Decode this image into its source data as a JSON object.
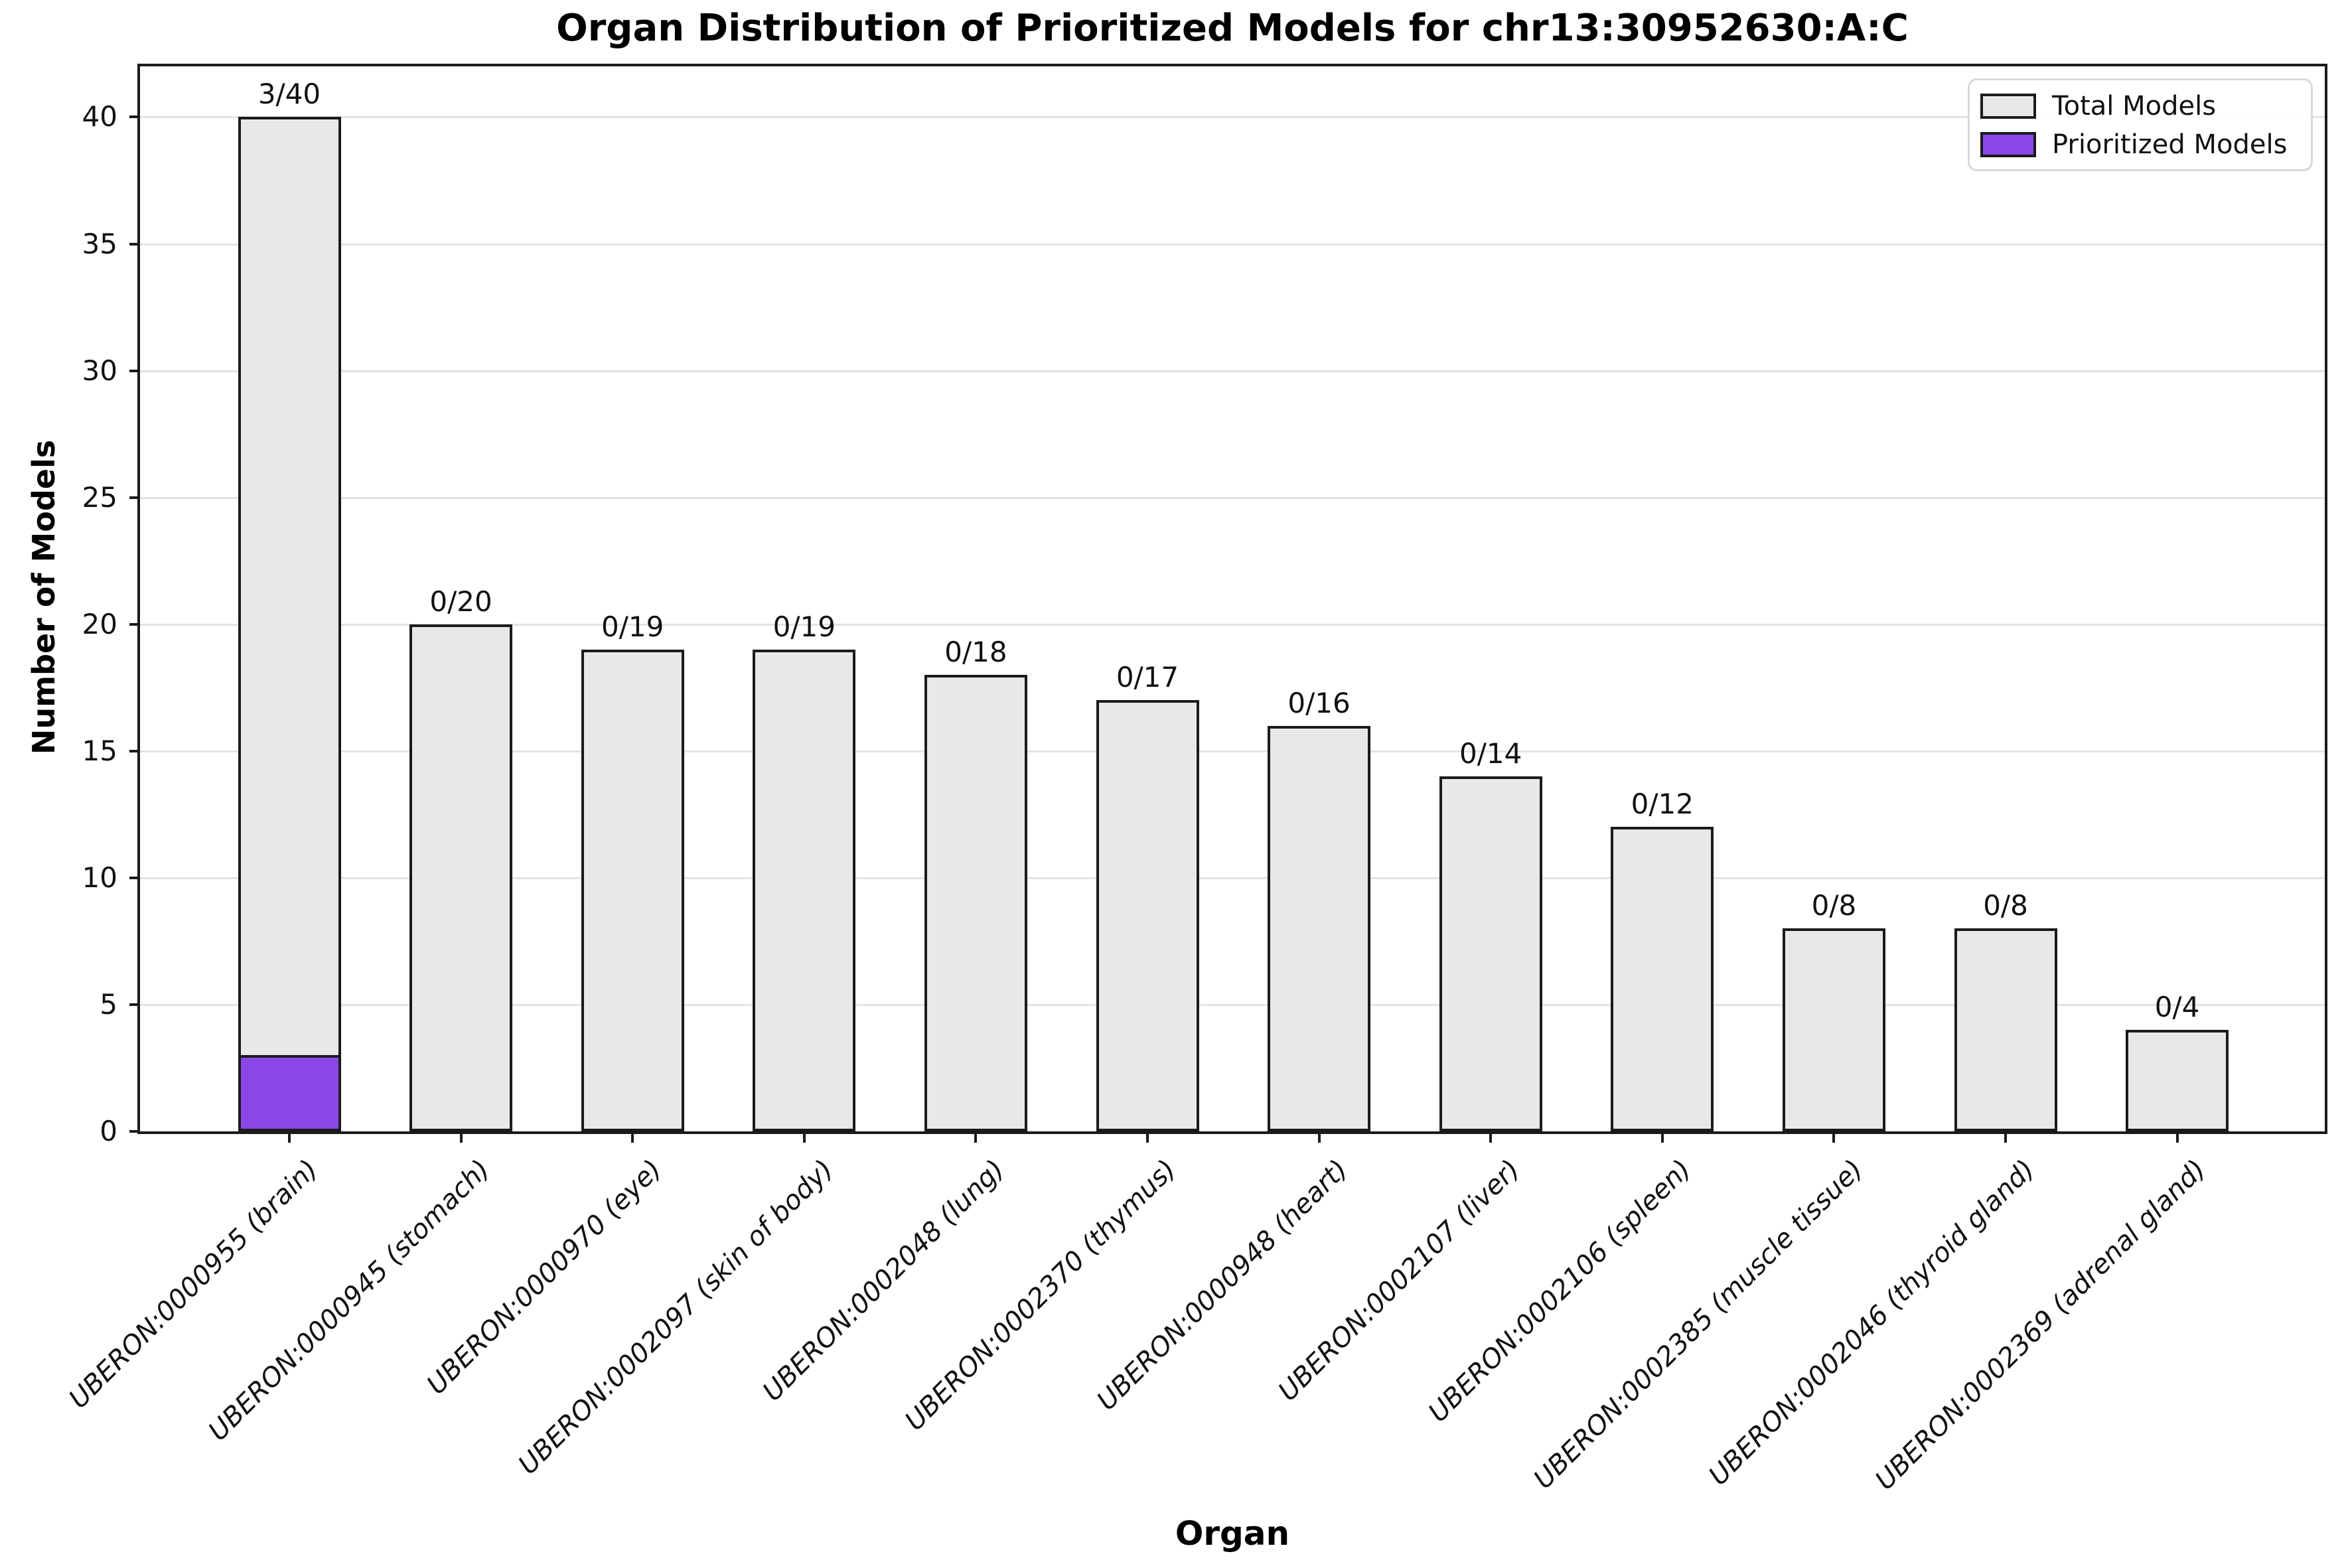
{
  "chart_data": {
    "type": "bar",
    "title": "Organ Distribution of Prioritized Models for chr13:30952630:A:C",
    "xlabel": "Organ",
    "ylabel": "Number of Models",
    "ylim": [
      0,
      42
    ],
    "yticks": [
      0,
      5,
      10,
      15,
      20,
      25,
      30,
      35,
      40
    ],
    "grid": "horizontal",
    "legend_position": "upper right",
    "categories": [
      "UBERON:0000955 (brain)",
      "UBERON:0000945 (stomach)",
      "UBERON:0000970 (eye)",
      "UBERON:0002097 (skin of body)",
      "UBERON:0002048 (lung)",
      "UBERON:0002370 (thymus)",
      "UBERON:0000948 (heart)",
      "UBERON:0002107 (liver)",
      "UBERON:0002106 (spleen)",
      "UBERON:0002385 (muscle tissue)",
      "UBERON:0002046 (thyroid gland)",
      "UBERON:0002369 (adrenal gland)"
    ],
    "series": [
      {
        "name": "Total Models",
        "color": "#e8e8eb",
        "values": [
          40,
          20,
          19,
          19,
          18,
          17,
          16,
          14,
          12,
          8,
          8,
          4
        ]
      },
      {
        "name": "Prioritized Models",
        "color": "#8a47e5",
        "values": [
          3,
          0,
          0,
          0,
          0,
          0,
          0,
          0,
          0,
          0,
          0,
          0
        ]
      }
    ],
    "bar_labels": [
      "3/40",
      "0/20",
      "0/19",
      "0/19",
      "0/18",
      "0/17",
      "0/16",
      "0/14",
      "0/12",
      "0/8",
      "0/8",
      "0/4"
    ],
    "edge_color": "#1b1b1b",
    "grid_color": "#e3e3e3",
    "background_color": "#ffffff"
  }
}
